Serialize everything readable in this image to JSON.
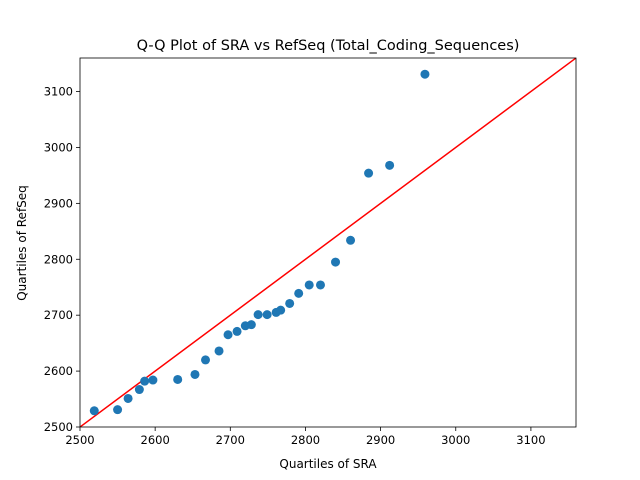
{
  "chart_data": {
    "type": "scatter",
    "title": "Q-Q Plot of SRA vs RefSeq (Total_Coding_Sequences)",
    "xlabel": "Quartiles of SRA",
    "ylabel": "Quartiles of RefSeq",
    "xlim": [
      2500,
      3160
    ],
    "ylim": [
      2500,
      3160
    ],
    "xticks": [
      2500,
      2600,
      2700,
      2800,
      2900,
      3000,
      3100
    ],
    "yticks": [
      2500,
      2600,
      2700,
      2800,
      2900,
      3000,
      3100
    ],
    "grid": false,
    "point_color": "#1f77b4",
    "reference_line": {
      "color": "#ff0000",
      "from": [
        2500,
        2500
      ],
      "to": [
        3160,
        3160
      ]
    },
    "points": [
      {
        "x": 2519,
        "y": 2529
      },
      {
        "x": 2550,
        "y": 2531
      },
      {
        "x": 2564,
        "y": 2551
      },
      {
        "x": 2579,
        "y": 2567
      },
      {
        "x": 2586,
        "y": 2582
      },
      {
        "x": 2597,
        "y": 2584
      },
      {
        "x": 2630,
        "y": 2585
      },
      {
        "x": 2653,
        "y": 2594
      },
      {
        "x": 2667,
        "y": 2620
      },
      {
        "x": 2685,
        "y": 2636
      },
      {
        "x": 2697,
        "y": 2665
      },
      {
        "x": 2709,
        "y": 2671
      },
      {
        "x": 2720,
        "y": 2681
      },
      {
        "x": 2728,
        "y": 2683
      },
      {
        "x": 2737,
        "y": 2701
      },
      {
        "x": 2749,
        "y": 2701
      },
      {
        "x": 2761,
        "y": 2705
      },
      {
        "x": 2767,
        "y": 2709
      },
      {
        "x": 2779,
        "y": 2721
      },
      {
        "x": 2791,
        "y": 2739
      },
      {
        "x": 2805,
        "y": 2754
      },
      {
        "x": 2820,
        "y": 2754
      },
      {
        "x": 2840,
        "y": 2795
      },
      {
        "x": 2860,
        "y": 2834
      },
      {
        "x": 2884,
        "y": 2954
      },
      {
        "x": 2912,
        "y": 2968
      },
      {
        "x": 2959,
        "y": 3131
      }
    ]
  }
}
